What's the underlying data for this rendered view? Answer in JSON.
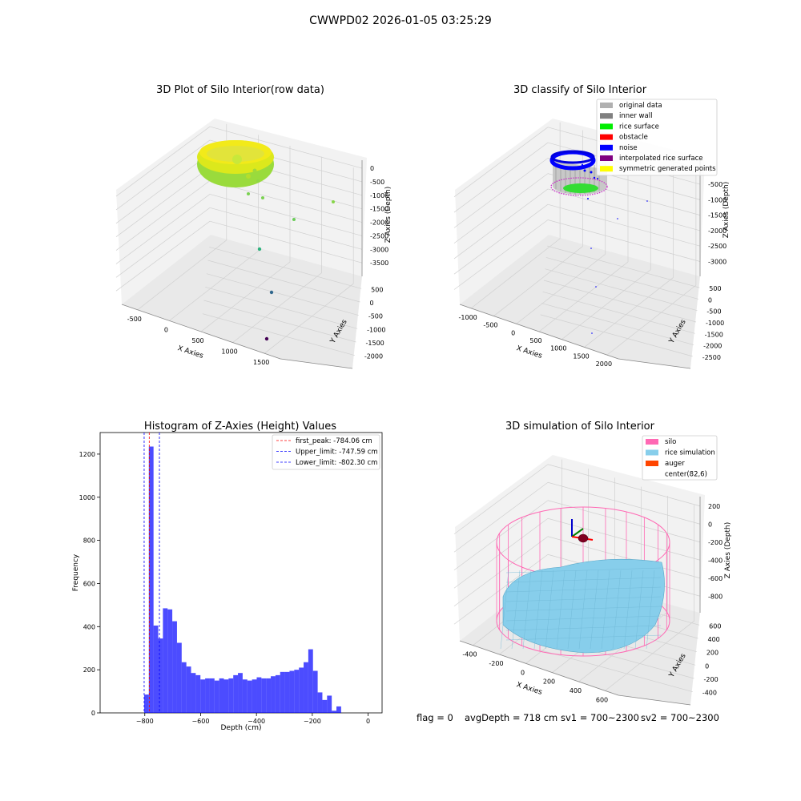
{
  "window_title": "CWWPD02 2026-01-05 03:25:29",
  "panels": {
    "raw": {
      "title": "3D Plot of Silo Interior(row data)",
      "xlabel": "X Axies",
      "ylabel": "Y Axies",
      "zlabel": "Z Axies (Depth)",
      "xticks": [
        "-500",
        "0",
        "500",
        "1000",
        "1500"
      ],
      "yticks": [
        "500",
        "0",
        "-500",
        "-1000",
        "-1500",
        "-2000"
      ],
      "zticks": [
        "0",
        "-500",
        "-1000",
        "-1500",
        "-2000",
        "-2500",
        "-3000",
        "-3500"
      ]
    },
    "classify": {
      "title": "3D classify of Silo Interior",
      "xlabel": "X Axies",
      "ylabel": "Y Axies",
      "zlabel": "Z Axies (Depth)",
      "xticks": [
        "-1000",
        "-500",
        "0",
        "500",
        "1000",
        "1500",
        "2000"
      ],
      "yticks": [
        "500",
        "0",
        "-500",
        "-1000",
        "-1500",
        "-2000",
        "-2500"
      ],
      "zticks": [
        "0",
        "-500",
        "-1000",
        "-1500",
        "-2000",
        "-2500",
        "-3000"
      ],
      "legend": [
        {
          "label": "original data",
          "color": "#b0b0b0"
        },
        {
          "label": "inner wall",
          "color": "#808080"
        },
        {
          "label": "rice surface",
          "color": "#00ee00"
        },
        {
          "label": "obstacle",
          "color": "#ff0000"
        },
        {
          "label": "noise",
          "color": "#0000ff"
        },
        {
          "label": "interpolated rice surface",
          "color": "#800080"
        },
        {
          "label": "symmetric generated points",
          "color": "#ffff00"
        }
      ]
    },
    "simulation": {
      "title": "3D simulation of Silo Interior",
      "xlabel": "X Axies",
      "ylabel": "Y Axies",
      "zlabel": "Z Axies (Depth)",
      "xticks": [
        "-400",
        "-200",
        "0",
        "200",
        "400",
        "600"
      ],
      "yticks": [
        "600",
        "400",
        "200",
        "0",
        "-200",
        "-400"
      ],
      "zticks": [
        "200",
        "0",
        "-200",
        "-400",
        "-600",
        "-800"
      ],
      "legend": [
        {
          "label": "silo",
          "color": "#ff69b4"
        },
        {
          "label": "rice simulation",
          "color": "#87ceeb"
        },
        {
          "label": "auger",
          "color": "#ff4500"
        },
        {
          "label": "center(82,6)",
          "color": "none"
        }
      ]
    }
  },
  "chart_data": [
    {
      "type": "bar",
      "title": "Histogram of Z-Axies (Height) Values",
      "xlabel": "Depth (cm)",
      "ylabel": "Frequency",
      "xlim": [
        -960,
        50
      ],
      "ylim": [
        0,
        1300
      ],
      "xticks": [
        -800,
        -600,
        -400,
        -200,
        0
      ],
      "yticks": [
        0,
        200,
        400,
        600,
        800,
        1000,
        1200
      ],
      "bar_color": "#0000ff",
      "bin_width": 16.8,
      "bin_starts": [
        -802.3,
        -785.5,
        -768.7,
        -751.9,
        -735.1,
        -718.3,
        -701.5,
        -684.7,
        -667.9,
        -651.1,
        -634.3,
        -617.5,
        -600.7,
        -583.9,
        -567.1,
        -550.3,
        -533.5,
        -516.7,
        -499.9,
        -483.1,
        -466.3,
        -449.5,
        -432.7,
        -415.9,
        -399.1,
        -382.3,
        -365.5,
        -348.7,
        -331.9,
        -315.1,
        -298.3,
        -281.5,
        -264.7,
        -247.9,
        -231.1,
        -214.3,
        -197.5,
        -180.7,
        -163.9,
        -147.1,
        -130.3,
        -113.5,
        -96.7,
        -79.9,
        -63.1,
        -46.3,
        -29.5,
        -12.7
      ],
      "values": [
        85,
        1235,
        405,
        345,
        485,
        480,
        425,
        325,
        235,
        215,
        185,
        175,
        155,
        160,
        160,
        150,
        160,
        155,
        160,
        175,
        185,
        155,
        150,
        155,
        165,
        160,
        160,
        170,
        175,
        190,
        190,
        195,
        200,
        210,
        235,
        295,
        195,
        95,
        60,
        80,
        10,
        30,
        0,
        0,
        0,
        0,
        0,
        0
      ],
      "vlines": [
        {
          "label": "first_peak: -784.06 cm",
          "x": -784.06,
          "color": "#ff0000"
        },
        {
          "label": "Upper_limit: -747.59 cm",
          "x": -747.59,
          "color": "#0000ff"
        },
        {
          "label": "Lower_limit: -802.30 cm",
          "x": -802.3,
          "color": "#0000ff"
        }
      ],
      "legend_position": "top-right"
    }
  ],
  "footer": {
    "flag": "flag = 0",
    "avg_depth": "avgDepth = 718 cm",
    "sv1": "sv1 = 700~2300",
    "sv2": "sv2 = 700~2300"
  }
}
